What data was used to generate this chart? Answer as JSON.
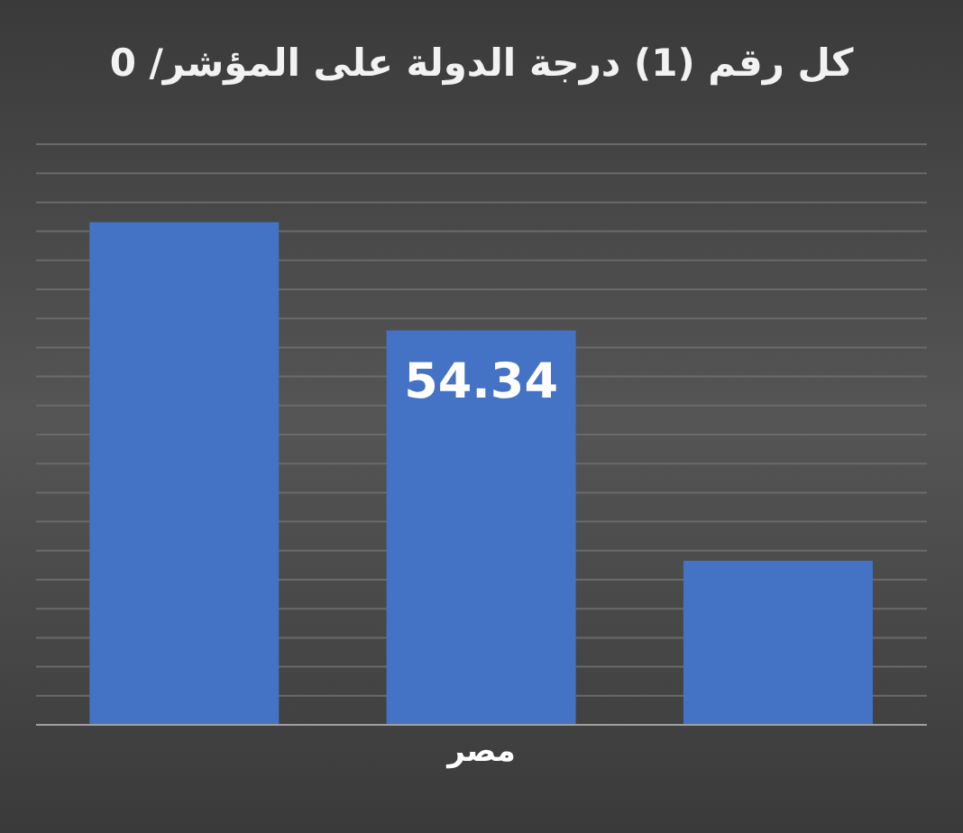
{
  "chart_data": {
    "type": "bar",
    "title": "كل رقم (1) درجة الدولة على المؤشر/ 0",
    "categories": [
      null,
      "مصر",
      null
    ],
    "values": [
      69.26,
      54.34,
      22.6
    ],
    "value_labels": [
      null,
      "54.34",
      null
    ],
    "color": "#4472c4",
    "ylim": [
      0,
      80
    ],
    "yticks": [
      {
        "value": 0,
        "label": null
      },
      {
        "value": 4,
        "label": null
      },
      {
        "value": 8,
        "label": null
      },
      {
        "value": 12,
        "label": null
      },
      {
        "value": 16,
        "label": null
      },
      {
        "value": 20,
        "label": null
      },
      {
        "value": 24,
        "label": null
      },
      {
        "value": 28,
        "label": null
      },
      {
        "value": 32,
        "label": null
      },
      {
        "value": 36,
        "label": null
      },
      {
        "value": 40,
        "label": null
      },
      {
        "value": 44,
        "label": null
      },
      {
        "value": 48,
        "label": null
      },
      {
        "value": 52,
        "label": null
      },
      {
        "value": 56,
        "label": null
      },
      {
        "value": 60,
        "label": null
      },
      {
        "value": 64,
        "label": null
      },
      {
        "value": 68,
        "label": null
      },
      {
        "value": 72,
        "label": null
      },
      {
        "value": 76,
        "label": null
      },
      {
        "value": 80,
        "label": null
      }
    ],
    "grid": "y",
    "tick_labels": "x"
  }
}
